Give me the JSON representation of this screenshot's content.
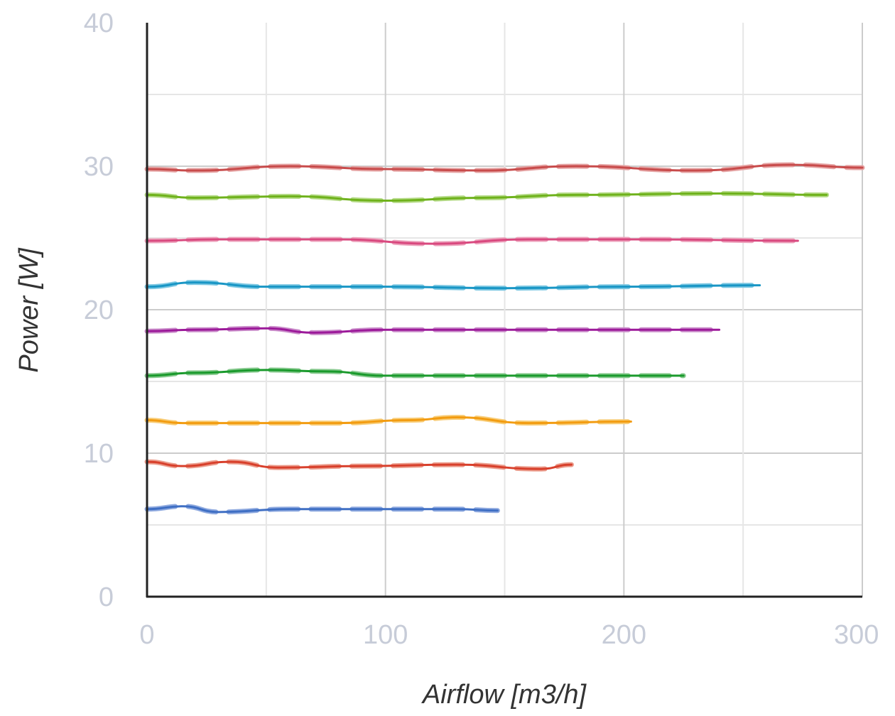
{
  "chart_data": {
    "type": "line",
    "title": "",
    "xlabel": "Airflow [m3/h]",
    "ylabel": "Power [W]",
    "xlim": [
      0,
      300
    ],
    "ylim": [
      0,
      40
    ],
    "xticks": [
      0,
      100,
      200,
      300
    ],
    "yticks": [
      0,
      10,
      20,
      30,
      40
    ],
    "grid": true,
    "series": [
      {
        "color": "#3f6fc4",
        "light": "#8ea9df",
        "x": [
          0,
          15,
          30,
          60,
          100,
          130,
          147
        ],
        "y": [
          6.1,
          6.3,
          5.9,
          6.1,
          6.1,
          6.1,
          6.0
        ]
      },
      {
        "color": "#d8402c",
        "light": "#eb9c8c",
        "x": [
          0,
          15,
          35,
          55,
          90,
          130,
          165,
          178
        ],
        "y": [
          9.4,
          9.1,
          9.4,
          9.0,
          9.1,
          9.2,
          8.9,
          9.2
        ]
      },
      {
        "color": "#f29c11",
        "light": "#f8cc76",
        "x": [
          0,
          15,
          40,
          80,
          110,
          130,
          160,
          203
        ],
        "y": [
          12.3,
          12.1,
          12.1,
          12.1,
          12.3,
          12.5,
          12.1,
          12.2
        ]
      },
      {
        "color": "#1a9a2c",
        "light": "#87c98e",
        "x": [
          0,
          20,
          50,
          75,
          100,
          140,
          190,
          225
        ],
        "y": [
          15.4,
          15.6,
          15.8,
          15.7,
          15.4,
          15.4,
          15.4,
          15.4
        ]
      },
      {
        "color": "#9c1a9a",
        "light": "#c98ac9",
        "x": [
          0,
          20,
          50,
          70,
          100,
          150,
          200,
          240
        ],
        "y": [
          18.5,
          18.6,
          18.7,
          18.4,
          18.6,
          18.6,
          18.6,
          18.6
        ]
      },
      {
        "color": "#1996c5",
        "light": "#7cc7e2",
        "x": [
          0,
          20,
          50,
          100,
          150,
          200,
          257
        ],
        "y": [
          21.6,
          21.9,
          21.6,
          21.6,
          21.5,
          21.6,
          21.7
        ]
      },
      {
        "color": "#d9497f",
        "light": "#eca1bb",
        "x": [
          0,
          30,
          80,
          120,
          160,
          210,
          273
        ],
        "y": [
          24.8,
          24.9,
          24.9,
          24.6,
          24.9,
          24.9,
          24.8
        ]
      },
      {
        "color": "#6fb21c",
        "light": "#b4da86",
        "x": [
          0,
          20,
          60,
          100,
          140,
          180,
          240,
          285
        ],
        "y": [
          28.0,
          27.8,
          27.9,
          27.6,
          27.8,
          28.0,
          28.1,
          28.0
        ]
      },
      {
        "color": "#c84b4b",
        "light": "#e5a3a3",
        "x": [
          0,
          20,
          60,
          100,
          140,
          180,
          230,
          270,
          300
        ],
        "y": [
          29.8,
          29.7,
          30.0,
          29.8,
          29.7,
          30.0,
          29.7,
          30.1,
          29.9
        ]
      }
    ]
  }
}
